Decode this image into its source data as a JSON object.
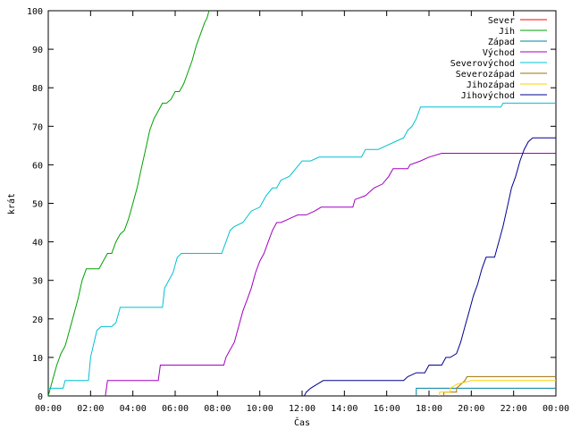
{
  "chart_data": {
    "type": "line",
    "xlabel": "Čas",
    "ylabel": "krát",
    "xlim": [
      0,
      24
    ],
    "ylim": [
      0,
      100
    ],
    "x_ticks": [
      {
        "value": 0,
        "label": "00:00"
      },
      {
        "value": 2,
        "label": "02:00"
      },
      {
        "value": 4,
        "label": "04:00"
      },
      {
        "value": 6,
        "label": "06:00"
      },
      {
        "value": 8,
        "label": "08:00"
      },
      {
        "value": 10,
        "label": "10:00"
      },
      {
        "value": 12,
        "label": "12:00"
      },
      {
        "value": 14,
        "label": "14:00"
      },
      {
        "value": 16,
        "label": "16:00"
      },
      {
        "value": 18,
        "label": "18:00"
      },
      {
        "value": 20,
        "label": "20:00"
      },
      {
        "value": 22,
        "label": "22:00"
      },
      {
        "value": 24,
        "label": "00:00"
      }
    ],
    "y_ticks": [
      0,
      10,
      20,
      30,
      40,
      50,
      60,
      70,
      80,
      90,
      100
    ],
    "legend_position": "top-right",
    "series": [
      {
        "name": "Sever",
        "color": "#ff0000",
        "points": []
      },
      {
        "name": "Jih",
        "color": "#00a000",
        "points": [
          [
            0.0,
            0
          ],
          [
            0.2,
            4
          ],
          [
            0.4,
            8
          ],
          [
            0.6,
            11
          ],
          [
            0.8,
            13
          ],
          [
            1.0,
            17
          ],
          [
            1.2,
            21
          ],
          [
            1.4,
            25
          ],
          [
            1.6,
            30
          ],
          [
            1.8,
            33
          ],
          [
            2.4,
            33
          ],
          [
            2.6,
            35
          ],
          [
            2.8,
            37
          ],
          [
            3.0,
            37
          ],
          [
            3.2,
            40
          ],
          [
            3.4,
            42
          ],
          [
            3.6,
            43
          ],
          [
            3.8,
            46
          ],
          [
            4.0,
            50
          ],
          [
            4.2,
            54
          ],
          [
            4.4,
            59
          ],
          [
            4.6,
            64
          ],
          [
            4.8,
            69
          ],
          [
            5.0,
            72
          ],
          [
            5.2,
            74
          ],
          [
            5.4,
            76
          ],
          [
            5.6,
            76
          ],
          [
            5.8,
            77
          ],
          [
            6.0,
            79
          ],
          [
            6.2,
            79
          ],
          [
            6.4,
            81
          ],
          [
            6.6,
            84
          ],
          [
            6.8,
            87
          ],
          [
            7.0,
            91
          ],
          [
            7.2,
            94
          ],
          [
            7.4,
            97
          ],
          [
            7.5,
            98
          ],
          [
            7.6,
            100
          ]
        ]
      },
      {
        "name": "Západ",
        "color": "#0080a0",
        "points": [
          [
            17.4,
            0
          ],
          [
            17.4,
            2
          ],
          [
            18.8,
            2
          ],
          [
            19.2,
            2
          ],
          [
            24.0,
            2
          ]
        ]
      },
      {
        "name": "Východ",
        "color": "#a000c0",
        "points": [
          [
            2.7,
            0
          ],
          [
            2.8,
            4
          ],
          [
            3.0,
            4
          ],
          [
            5.2,
            4
          ],
          [
            5.3,
            8
          ],
          [
            8.3,
            8
          ],
          [
            8.4,
            10
          ],
          [
            8.6,
            12
          ],
          [
            8.8,
            14
          ],
          [
            9.0,
            18
          ],
          [
            9.2,
            22
          ],
          [
            9.4,
            25
          ],
          [
            9.6,
            28
          ],
          [
            9.8,
            32
          ],
          [
            10.0,
            35
          ],
          [
            10.2,
            37
          ],
          [
            10.4,
            40
          ],
          [
            10.6,
            43
          ],
          [
            10.8,
            45
          ],
          [
            11.0,
            45
          ],
          [
            11.4,
            46
          ],
          [
            11.8,
            47
          ],
          [
            12.2,
            47
          ],
          [
            12.6,
            48
          ],
          [
            12.9,
            49
          ],
          [
            14.0,
            49
          ],
          [
            14.4,
            49
          ],
          [
            14.5,
            51
          ],
          [
            15.0,
            52
          ],
          [
            15.4,
            54
          ],
          [
            15.8,
            55
          ],
          [
            16.1,
            57
          ],
          [
            16.3,
            59
          ],
          [
            17.0,
            59
          ],
          [
            17.1,
            60
          ],
          [
            17.6,
            61
          ],
          [
            18.0,
            62
          ],
          [
            18.6,
            63
          ],
          [
            24.0,
            63
          ]
        ]
      },
      {
        "name": "Severovýchod",
        "color": "#00c0d0",
        "points": [
          [
            0.0,
            2
          ],
          [
            0.7,
            2
          ],
          [
            0.8,
            4
          ],
          [
            1.9,
            4
          ],
          [
            2.0,
            10
          ],
          [
            2.3,
            17
          ],
          [
            2.5,
            18
          ],
          [
            3.0,
            18
          ],
          [
            3.2,
            19
          ],
          [
            3.4,
            23
          ],
          [
            5.4,
            23
          ],
          [
            5.5,
            28
          ],
          [
            5.7,
            30
          ],
          [
            5.9,
            32
          ],
          [
            6.1,
            36
          ],
          [
            6.3,
            37
          ],
          [
            8.2,
            37
          ],
          [
            8.4,
            40
          ],
          [
            8.6,
            43
          ],
          [
            8.8,
            44
          ],
          [
            9.2,
            45
          ],
          [
            9.6,
            48
          ],
          [
            10.0,
            49
          ],
          [
            10.3,
            52
          ],
          [
            10.6,
            54
          ],
          [
            10.8,
            54
          ],
          [
            11.0,
            56
          ],
          [
            11.4,
            57
          ],
          [
            11.7,
            59
          ],
          [
            12.0,
            61
          ],
          [
            12.4,
            61
          ],
          [
            12.8,
            62
          ],
          [
            14.8,
            62
          ],
          [
            15.0,
            64
          ],
          [
            15.6,
            64
          ],
          [
            16.0,
            65
          ],
          [
            16.4,
            66
          ],
          [
            16.8,
            67
          ],
          [
            17.0,
            69
          ],
          [
            17.2,
            70
          ],
          [
            17.4,
            72
          ],
          [
            17.6,
            75
          ],
          [
            21.4,
            75
          ],
          [
            21.5,
            76
          ],
          [
            24.0,
            76
          ]
        ]
      },
      {
        "name": "Severozápad",
        "color": "#a07000",
        "points": [
          [
            18.7,
            0
          ],
          [
            18.7,
            1
          ],
          [
            19.3,
            1
          ],
          [
            19.3,
            2
          ],
          [
            19.5,
            3
          ],
          [
            19.7,
            4
          ],
          [
            19.8,
            5
          ],
          [
            24.0,
            5
          ]
        ]
      },
      {
        "name": "Jihozápad",
        "color": "#ffd000",
        "points": [
          [
            18.5,
            0
          ],
          [
            18.5,
            1
          ],
          [
            19.0,
            1
          ],
          [
            19.0,
            2
          ],
          [
            19.3,
            3
          ],
          [
            20.0,
            4
          ],
          [
            24.0,
            4
          ]
        ]
      },
      {
        "name": "Jihovýchod",
        "color": "#000090",
        "points": [
          [
            12.1,
            0
          ],
          [
            12.2,
            1
          ],
          [
            12.4,
            2
          ],
          [
            12.7,
            3
          ],
          [
            13.0,
            4
          ],
          [
            16.8,
            4
          ],
          [
            17.0,
            5
          ],
          [
            17.4,
            6
          ],
          [
            17.8,
            6
          ],
          [
            18.0,
            8
          ],
          [
            18.6,
            8
          ],
          [
            18.8,
            10
          ],
          [
            19.0,
            10
          ],
          [
            19.3,
            11
          ],
          [
            19.5,
            14
          ],
          [
            19.7,
            18
          ],
          [
            19.9,
            22
          ],
          [
            20.1,
            26
          ],
          [
            20.3,
            29
          ],
          [
            20.5,
            33
          ],
          [
            20.7,
            36
          ],
          [
            21.1,
            36
          ],
          [
            21.3,
            40
          ],
          [
            21.5,
            44
          ],
          [
            21.7,
            49
          ],
          [
            21.9,
            54
          ],
          [
            22.1,
            57
          ],
          [
            22.3,
            61
          ],
          [
            22.5,
            64
          ],
          [
            22.7,
            66
          ],
          [
            22.9,
            67
          ],
          [
            24.0,
            67
          ]
        ]
      }
    ]
  }
}
